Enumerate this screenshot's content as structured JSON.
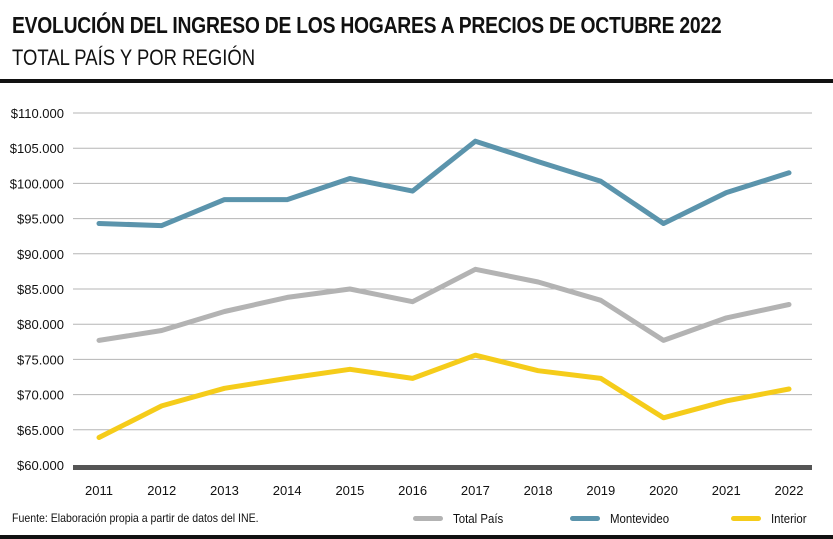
{
  "chart_data": {
    "type": "line",
    "title": "EVOLUCIÓN DEL INGRESO DE LOS HOGARES A PRECIOS DE OCTUBRE 2022",
    "subtitle": "TOTAL PAÍS Y POR REGIÓN",
    "xlabel": "",
    "ylabel": "",
    "x": [
      "2011",
      "2012",
      "2013",
      "2014",
      "2015",
      "2016",
      "2017",
      "2018",
      "2019",
      "2020",
      "2021",
      "2022"
    ],
    "ylim": [
      60000,
      110000
    ],
    "ytick_labels": [
      "$110.000",
      "$105.000",
      "$100.000",
      "$95.000",
      "$90.000",
      "$85.000",
      "$80.000",
      "$75.000",
      "$70.000",
      "$65.000",
      "$60.000"
    ],
    "grid": true,
    "legend_position": "bottom-right",
    "series": [
      {
        "name": "Total País",
        "color": "#b3b3b3",
        "values": [
          77700,
          79100,
          81800,
          83800,
          85000,
          83200,
          87800,
          86000,
          83400,
          77700,
          80900,
          82800
        ]
      },
      {
        "name": "Montevideo",
        "color": "#5b94ac",
        "values": [
          94300,
          94000,
          97700,
          97700,
          100700,
          98900,
          106000,
          103100,
          100300,
          94300,
          98700,
          101500
        ]
      },
      {
        "name": "Interior",
        "color": "#f5cc1a",
        "values": [
          63900,
          68400,
          70900,
          72300,
          73600,
          72300,
          75600,
          73400,
          72300,
          66700,
          69100,
          70800
        ]
      }
    ],
    "source": "Fuente: Elaboración propia a partir de datos del INE."
  }
}
